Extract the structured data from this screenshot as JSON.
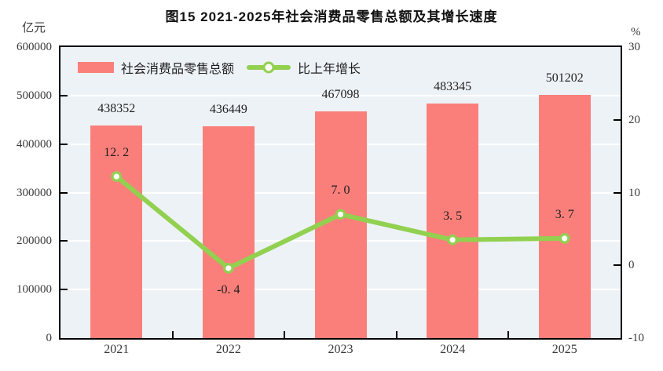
{
  "title": "图15  2021-2025年社会消费品零售总额及其增长速度",
  "left_axis": {
    "unit": "亿元",
    "min": 0,
    "max": 600000,
    "tick_step": 100000,
    "tick_labels": [
      "600000",
      "500000",
      "400000",
      "300000",
      "200000",
      "100000",
      "0"
    ]
  },
  "right_axis": {
    "unit": "%",
    "min": -10,
    "max": 30,
    "tick_step": 10,
    "tick_labels": [
      "30",
      "20",
      "10",
      "0",
      "-10"
    ]
  },
  "legend": {
    "bar_label": "社会消费品零售总额",
    "line_label": "比上年增长"
  },
  "colors": {
    "bar": "#FA7F7A",
    "line": "#92D050",
    "marker_fill": "#FFFFFF",
    "plot_bg": "#EDF2F7",
    "gridline": "#FFFFFF",
    "border": "#000000",
    "text": "#1F1F1F"
  },
  "chart_data": {
    "type": "bar+line",
    "title": "图15  2021-2025年社会消费品零售总额及其增长速度",
    "categories": [
      "2021",
      "2022",
      "2023",
      "2024",
      "2025"
    ],
    "series": [
      {
        "name": "社会消费品零售总额",
        "type": "bar",
        "axis": "left",
        "unit": "亿元",
        "values": [
          438352,
          436449,
          467098,
          483345,
          501202
        ],
        "labels": [
          "438352",
          "436449",
          "467098",
          "483345",
          "501202"
        ]
      },
      {
        "name": "比上年增长",
        "type": "line",
        "axis": "right",
        "unit": "%",
        "values": [
          12.2,
          -0.4,
          7.0,
          3.5,
          3.7
        ],
        "labels": [
          "12. 2",
          "-0. 4",
          "7. 0",
          "3. 5",
          "3. 7"
        ],
        "label_positions": [
          "above",
          "below",
          "above",
          "above",
          "above"
        ]
      }
    ],
    "left_ylim": [
      0,
      600000
    ],
    "right_ylim": [
      -10,
      30
    ],
    "grid": true,
    "gridline_axis": "left",
    "legend_position": "top-left-inside"
  }
}
